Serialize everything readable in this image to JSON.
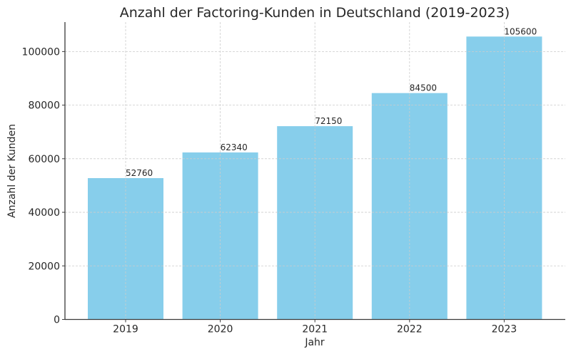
{
  "chart_data": {
    "type": "bar",
    "title": "Anzahl der Factoring-Kunden in Deutschland (2019-2023)",
    "xlabel": "Jahr",
    "ylabel": "Anzahl der Kunden",
    "categories": [
      "2019",
      "2020",
      "2021",
      "2022",
      "2023"
    ],
    "values": [
      52760,
      62340,
      72150,
      84500,
      105600
    ],
    "data_labels": [
      "52760",
      "62340",
      "72150",
      "84500",
      "105600"
    ],
    "ylim": [
      0,
      111000
    ],
    "yticks": [
      0,
      20000,
      40000,
      60000,
      80000,
      100000
    ],
    "ytick_labels": [
      "0",
      "20000",
      "40000",
      "60000",
      "80000",
      "100000"
    ],
    "grid": true,
    "grid_style": "dashed",
    "legend": null,
    "bar_color": "#87CEEB"
  }
}
